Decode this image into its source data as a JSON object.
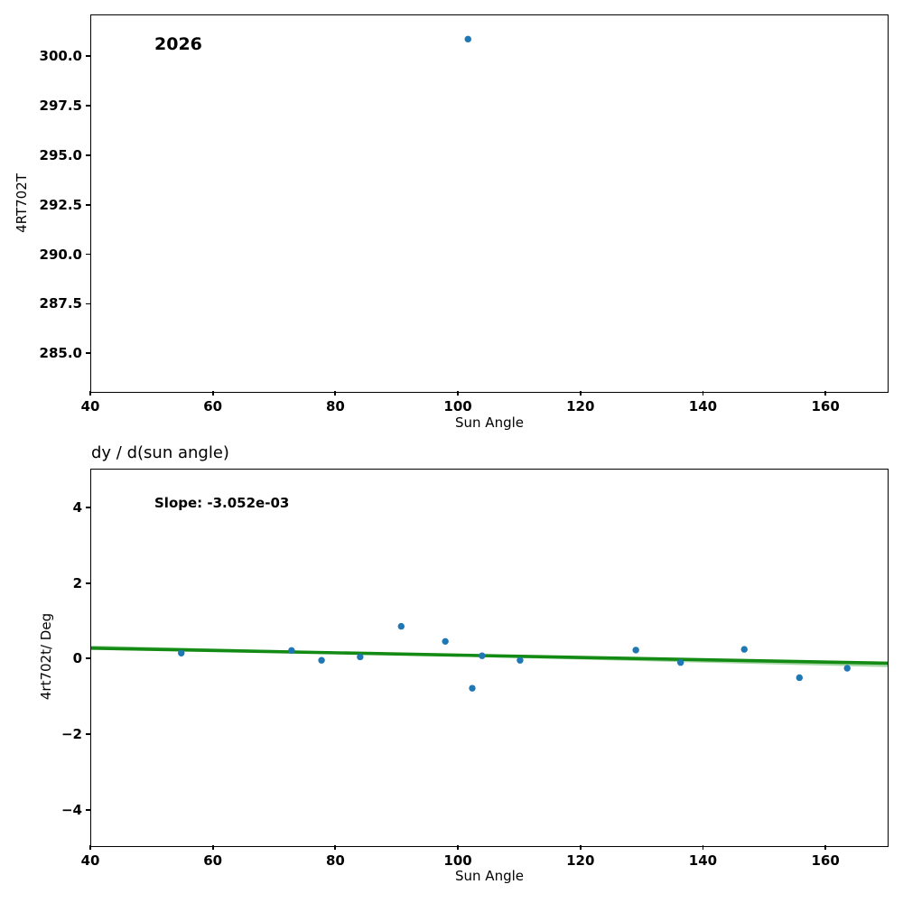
{
  "figure": {
    "background": "#ffffff",
    "spine_color": "#000000"
  },
  "chart_data": [
    {
      "type": "scatter",
      "annotation": "2026",
      "xlabel": "Sun Angle",
      "ylabel": "4RT702T",
      "xlim": [
        40,
        170
      ],
      "ylim": [
        283.1,
        302.1
      ],
      "xticks": [
        40,
        60,
        80,
        100,
        120,
        140,
        160
      ],
      "xtick_labels": [
        "40",
        "60",
        "80",
        "100",
        "120",
        "140",
        "160"
      ],
      "yticks": [
        285.0,
        287.5,
        290.0,
        292.5,
        295.0,
        297.5,
        300.0
      ],
      "ytick_labels": [
        "285.0",
        "287.5",
        "290.0",
        "292.5",
        "295.0",
        "297.5",
        "300.0"
      ],
      "grid": false,
      "legend": "none",
      "marker_color": "#1f77b4",
      "points": [
        [
          101.5,
          300.9
        ]
      ]
    },
    {
      "type": "scatter",
      "title": "dy / d(sun angle)",
      "annotation": "Slope: -3.052e-03",
      "slope": "-3.052e-03",
      "xlabel": "Sun Angle",
      "ylabel": "4rt702t/ Deg",
      "xlim": [
        40,
        170
      ],
      "ylim": [
        -4.94,
        5.03
      ],
      "xticks": [
        40,
        60,
        80,
        100,
        120,
        140,
        160
      ],
      "xtick_labels": [
        "40",
        "60",
        "80",
        "100",
        "120",
        "140",
        "160"
      ],
      "yticks": [
        -4,
        -2,
        0,
        2,
        4
      ],
      "ytick_labels": [
        "−4",
        "−2",
        "0",
        "2",
        "4"
      ],
      "grid": false,
      "legend": "none",
      "marker_color": "#1f77b4",
      "points": [
        [
          54.7,
          0.17
        ],
        [
          72.7,
          0.24
        ],
        [
          77.6,
          -0.02
        ],
        [
          83.9,
          0.07
        ],
        [
          90.6,
          0.88
        ],
        [
          97.8,
          0.48
        ],
        [
          102.2,
          -0.76
        ],
        [
          103.8,
          0.1
        ],
        [
          110.0,
          -0.02
        ],
        [
          128.9,
          0.25
        ],
        [
          136.2,
          -0.08
        ],
        [
          146.6,
          0.27
        ],
        [
          155.6,
          -0.48
        ],
        [
          163.4,
          -0.23
        ]
      ],
      "fit_line": {
        "color": "#138a13",
        "x": [
          40,
          170
        ],
        "y": [
          0.3,
          -0.097
        ]
      },
      "aux_line": {
        "color": "#a5d6a5",
        "x": [
          40,
          170
        ],
        "y": [
          0.34,
          -0.17
        ]
      }
    }
  ]
}
